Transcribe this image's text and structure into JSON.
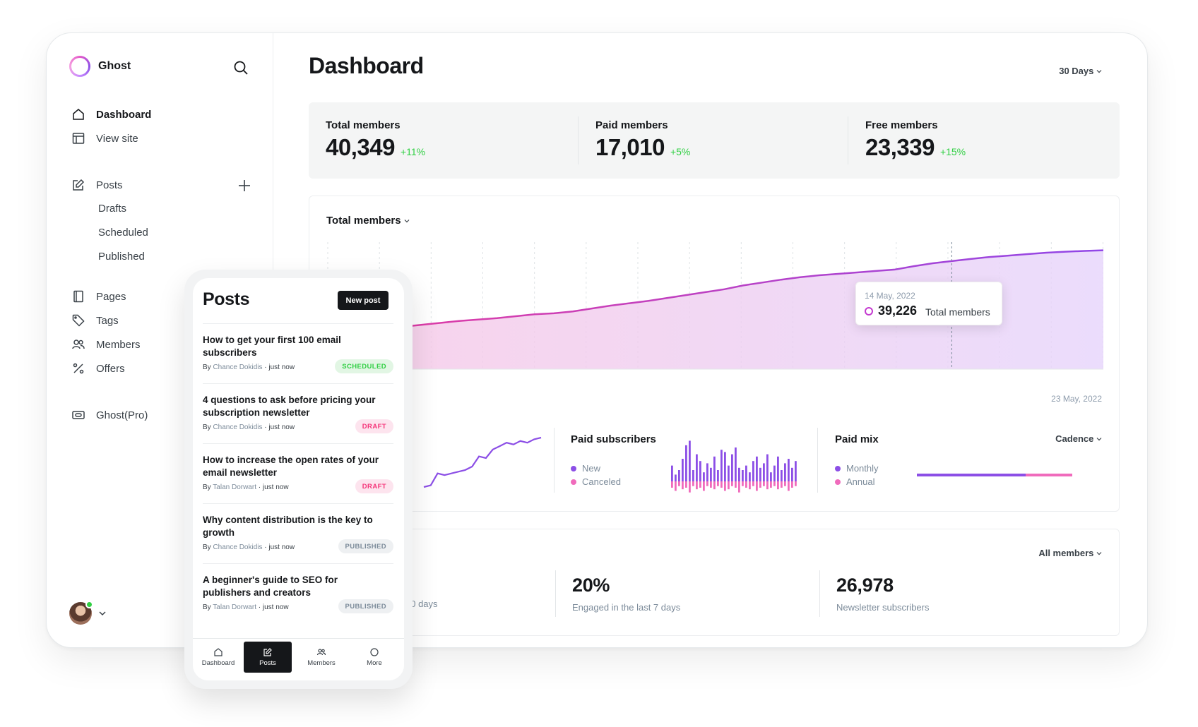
{
  "sidebar": {
    "brand": "Ghost",
    "nav": [
      {
        "label": "Dashboard",
        "icon": "home-icon",
        "active": true
      },
      {
        "label": "View site",
        "icon": "layout-icon"
      },
      {
        "label": "Posts",
        "icon": "pencil-icon"
      },
      {
        "label": "Pages",
        "icon": "pages-icon"
      },
      {
        "label": "Tags",
        "icon": "tag-icon"
      },
      {
        "label": "Members",
        "icon": "members-icon"
      },
      {
        "label": "Offers",
        "icon": "percent-icon"
      },
      {
        "label": "Ghost(Pro)",
        "icon": "ghostpro-icon"
      }
    ],
    "post_sub": [
      "Drafts",
      "Scheduled",
      "Published"
    ]
  },
  "header": {
    "title": "Dashboard",
    "range": "30 Days"
  },
  "kpis": [
    {
      "label": "Total members",
      "value": "40,349",
      "delta": "+11%"
    },
    {
      "label": "Paid members",
      "value": "17,010",
      "delta": "+5%"
    },
    {
      "label": "Free members",
      "value": "23,339",
      "delta": "+15%"
    }
  ],
  "chart": {
    "selector": "Total members",
    "end_date": "23 May, 2022",
    "tooltip": {
      "date": "14 May, 2022",
      "value": "39,226",
      "label": "Total members"
    }
  },
  "chart_data": [
    {
      "type": "area",
      "title": "Total members",
      "y": [
        31500,
        31650,
        31900,
        32150,
        32400,
        32600,
        32800,
        33000,
        33150,
        33300,
        33500,
        33700,
        33800,
        34000,
        34300,
        34600,
        34850,
        35100,
        35400,
        35700,
        36000,
        36300,
        36700,
        37000,
        37300,
        37550,
        37750,
        37900,
        38050,
        38200,
        38350,
        38700,
        39000,
        39226,
        39450,
        39650,
        39800,
        39950,
        40100,
        40200,
        40280,
        40349
      ],
      "ylim": [
        28000,
        41200
      ],
      "grid": true,
      "color": "#c43ad0"
    },
    {
      "type": "bar",
      "title": "Paid subscribers",
      "series": [
        {
          "name": "New",
          "color": "#8c4fe6",
          "values": [
            14,
            6,
            10,
            20,
            32,
            36,
            10,
            24,
            18,
            8,
            16,
            12,
            22,
            10,
            28,
            26,
            14,
            24,
            30,
            12,
            10,
            14,
            8,
            18,
            22,
            12,
            16,
            24,
            8,
            14,
            22,
            10,
            16,
            20,
            12,
            18
          ]
        },
        {
          "name": "Canceled",
          "color": "#f06bbc",
          "values": [
            4,
            6,
            3,
            5,
            4,
            7,
            3,
            5,
            4,
            6,
            3,
            4,
            5,
            3,
            4,
            6,
            5,
            3,
            4,
            7,
            3,
            4,
            5,
            3,
            6,
            4,
            3,
            5,
            4,
            3,
            5,
            4,
            3,
            6,
            4,
            3
          ]
        }
      ]
    },
    {
      "type": "bar",
      "title": "Paid mix",
      "series": [
        {
          "name": "Monthly",
          "color": "#8c4fe6",
          "values": [
            70
          ]
        },
        {
          "name": "Annual",
          "color": "#f06bbc",
          "values": [
            30
          ]
        }
      ]
    },
    {
      "type": "line",
      "y": [
        10,
        11,
        18,
        17,
        18,
        19,
        20,
        22,
        28,
        27,
        32,
        34,
        36,
        35,
        37,
        36,
        38,
        39
      ],
      "color": "#8c4fe6"
    }
  ],
  "subcharts": {
    "paid_subscribers": {
      "title": "Paid subscribers",
      "legend": [
        "New",
        "Canceled"
      ]
    },
    "paid_mix": {
      "title": "Paid mix",
      "legend": [
        "Monthly",
        "Annual"
      ],
      "selector": "Cadence"
    }
  },
  "engagement": {
    "selector": "All members",
    "partial_label": "30 days",
    "stats": [
      {
        "value": "20%",
        "label": "Engaged in the last 7 days"
      },
      {
        "value": "26,978",
        "label": "Newsletter subscribers"
      }
    ]
  },
  "mobile": {
    "title": "Posts",
    "new_post": "New post",
    "posts": [
      {
        "title": "How to get your first 100 email subscribers",
        "author": "Chance Dokidis",
        "time": "just now",
        "status": "SCHEDULED",
        "kind": "scheduled"
      },
      {
        "title": "4 questions to ask before pricing your subscription newsletter",
        "author": "Chance Dokidis",
        "time": "just now",
        "status": "DRAFT",
        "kind": "draft"
      },
      {
        "title": "How to increase the open rates of your email newsletter",
        "author": "Talan Dorwart",
        "time": "just now",
        "status": "DRAFT",
        "kind": "draft"
      },
      {
        "title": "Why content distribution is the key to growth",
        "author": "Chance Dokidis",
        "time": "just now",
        "status": "PUBLISHED",
        "kind": "published"
      },
      {
        "title": "A beginner's guide to SEO for publishers and creators",
        "author": "Talan Dorwart",
        "time": "just now",
        "status": "PUBLISHED",
        "kind": "published"
      }
    ],
    "by": "By",
    "tabs": [
      "Dashboard",
      "Posts",
      "Members",
      "More"
    ],
    "active_tab": "Posts"
  }
}
